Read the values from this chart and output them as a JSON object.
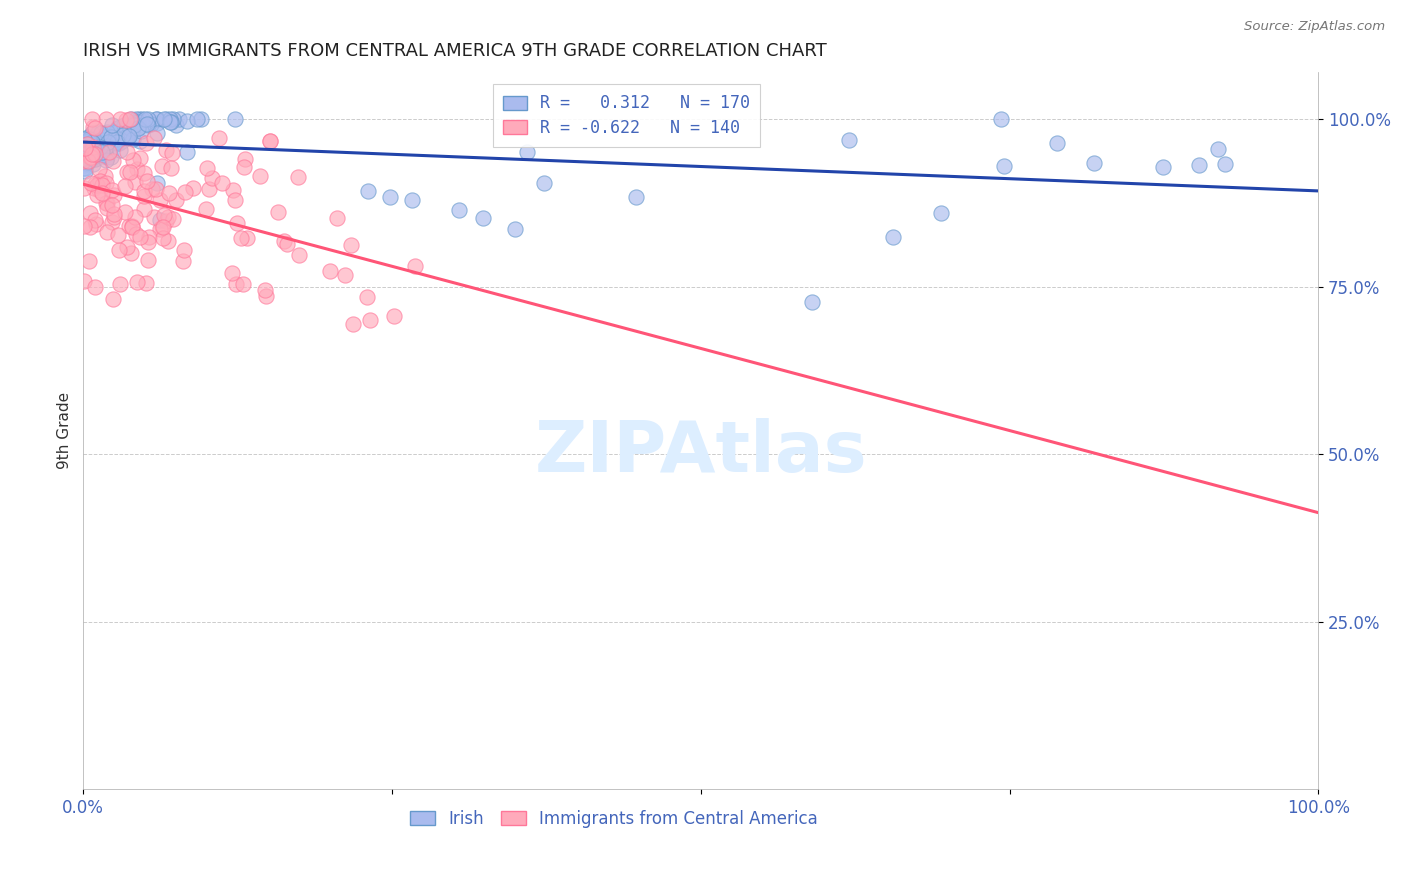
{
  "title": "IRISH VS IMMIGRANTS FROM CENTRAL AMERICA 9TH GRADE CORRELATION CHART",
  "source": "Source: ZipAtlas.com",
  "ylabel": "9th Grade",
  "irish_color_fill": "#aabbee",
  "irish_color_edge": "#6699cc",
  "ca_color_fill": "#ffaabb",
  "ca_color_edge": "#ff7799",
  "irish_line_color": "#2244aa",
  "ca_line_color": "#ff5577",
  "irish_R": 0.312,
  "irish_N": 170,
  "ca_R": -0.622,
  "ca_N": 140,
  "background_color": "#ffffff",
  "grid_color": "#cccccc",
  "watermark_color": "#ddeeff",
  "tick_color": "#4466bb",
  "title_color": "#222222",
  "source_color": "#777777"
}
